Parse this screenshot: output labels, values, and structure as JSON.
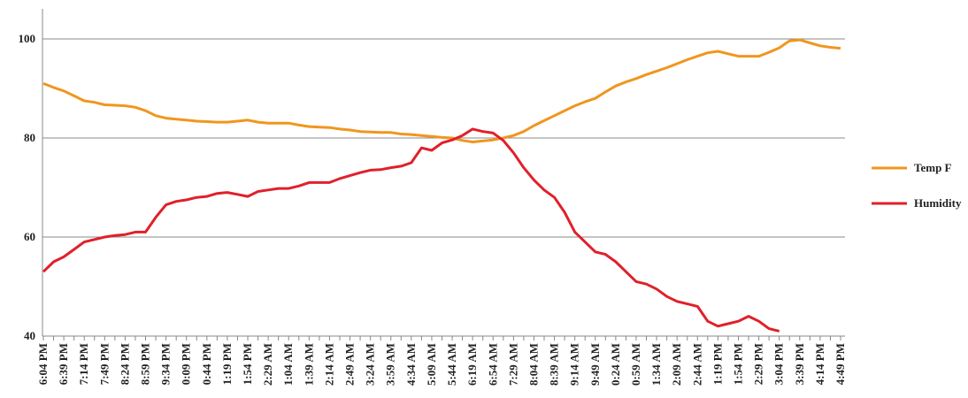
{
  "chart_data": {
    "type": "line",
    "categories": [
      "6:04 PM",
      null,
      "6:39 PM",
      null,
      "7:14 PM",
      null,
      "7:49 PM",
      null,
      "8:24 PM",
      null,
      "8:59 PM",
      null,
      "9:34 PM",
      null,
      "0:09 PM",
      null,
      "0:44 PM",
      null,
      "1:19 PM",
      null,
      "1:54 PM",
      null,
      "2:29 AM",
      null,
      "1:04 AM",
      null,
      "1:39 AM",
      null,
      "2:14 AM",
      null,
      "2:49 AM",
      null,
      "3:24 AM",
      null,
      "3:59 AM",
      null,
      "4:34 AM",
      null,
      "5:09 AM",
      null,
      "5:44 AM",
      null,
      "6:19 AM",
      null,
      "6:54 AM",
      null,
      "7:29 AM",
      null,
      "8:04 AM",
      null,
      "8:39 AM",
      null,
      "9:14 AM",
      null,
      "9:49 AM",
      null,
      "0:24 AM",
      null,
      "0:59 AM",
      null,
      "1:34 AM",
      null,
      "2:09 AM",
      null,
      "2:44 AM",
      null,
      "1:19 PM",
      null,
      "1:54 PM",
      null,
      "2:29 PM",
      null,
      "3:04 PM",
      null,
      "3:39 PM",
      null,
      "4:14 PM",
      null,
      "4:49 PM"
    ],
    "series": [
      {
        "name": "Temp F",
        "color": "#f0961e",
        "values": [
          91,
          90.2,
          89.5,
          88.5,
          87.5,
          87.2,
          86.7,
          86.6,
          86.5,
          86.2,
          85.5,
          84.5,
          84,
          83.8,
          83.6,
          83.4,
          83.3,
          83.2,
          83.2,
          83.4,
          83.6,
          83.2,
          83,
          83,
          83,
          82.6,
          82.3,
          82.2,
          82.1,
          81.8,
          81.6,
          81.3,
          81.2,
          81.1,
          81.1,
          80.8,
          80.7,
          80.5,
          80.3,
          80.1,
          80,
          79.5,
          79.2,
          79.4,
          79.6,
          80,
          80.5,
          81.3,
          82.5,
          83.5,
          84.5,
          85.5,
          86.5,
          87.3,
          88,
          89.3,
          90.5,
          91.3,
          92,
          92.8,
          93.5,
          94.2,
          95,
          95.8,
          96.5,
          97.2,
          97.5,
          97,
          96.5,
          96.5,
          96.5,
          97.3,
          98.2,
          99.6,
          99.8,
          99.2,
          98.6,
          98.3,
          98.1
        ]
      },
      {
        "name": "Humidity",
        "color": "#e0202a",
        "values": [
          53,
          55,
          56,
          57.5,
          59,
          59.5,
          60,
          60.3,
          60.5,
          61,
          61,
          64,
          66.5,
          67.2,
          67.5,
          68,
          68.2,
          68.8,
          69,
          68.6,
          68.2,
          69.2,
          69.5,
          69.8,
          69.8,
          70.3,
          71,
          71,
          71,
          71.8,
          72.4,
          73,
          73.5,
          73.6,
          74,
          74.3,
          75,
          78,
          77.5,
          79,
          79.6,
          80.5,
          81.8,
          81.3,
          81,
          79.5,
          77,
          74,
          71.5,
          69.5,
          68,
          65,
          61,
          59,
          57,
          56.5,
          55,
          53,
          51,
          50.5,
          49.5,
          48,
          47,
          46.5,
          46,
          43,
          42,
          42.5,
          43,
          44,
          43,
          41.5,
          41,
          null,
          null,
          null,
          null,
          null,
          null
        ]
      }
    ],
    "ylim": [
      40,
      100
    ],
    "yticks": [
      40,
      60,
      80,
      100
    ],
    "grid": true,
    "legend": "right"
  }
}
